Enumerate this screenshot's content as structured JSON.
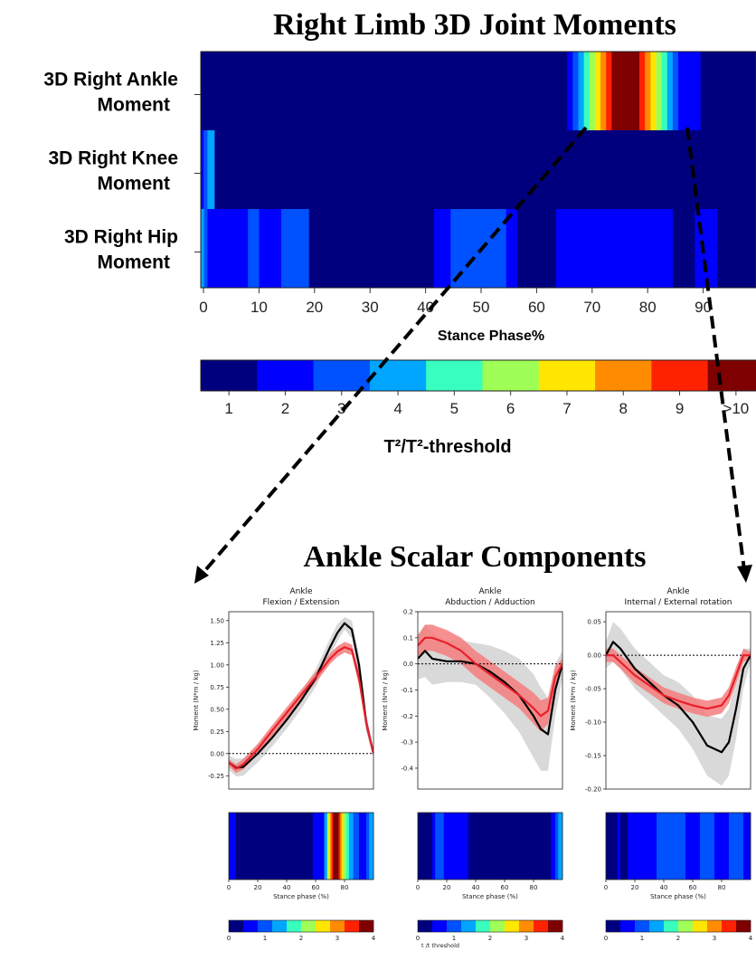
{
  "header": {
    "main_title": "Right Limb 3D Joint Moments",
    "components_title": "Ankle Scalar Components"
  },
  "colors": {
    "jet": [
      "#00007f",
      "#0000ff",
      "#0051ff",
      "#00a5ff",
      "#38ffbe",
      "#a0ff56",
      "#ffe600",
      "#ff8b00",
      "#ff2200",
      "#7f0000"
    ],
    "red_mean": "#e8202a",
    "red_band": "#f47c7c",
    "black_mean": "#000000",
    "gray_band": "#d9d9d9"
  },
  "chart_data": [
    {
      "type": "heatmap",
      "title": "Right Limb 3D Joint Moments",
      "xlabel": "Stance Phase%",
      "xlim": [
        0,
        100
      ],
      "x_ticks": [
        0,
        10,
        20,
        30,
        40,
        50,
        60,
        70,
        80,
        90
      ],
      "x_tick_labels": [
        "0",
        "10",
        "20",
        "30",
        "40",
        "50",
        "60",
        "70",
        "80",
        "90"
      ],
      "rows": [
        {
          "label": [
            "3D Right Ankle",
            "Moment"
          ],
          "segments": [
            [
              0,
              66,
              1
            ],
            [
              66,
              67,
              2
            ],
            [
              67,
              68,
              3
            ],
            [
              68,
              69,
              4
            ],
            [
              69,
              70,
              5
            ],
            [
              70,
              71,
              6
            ],
            [
              71,
              72,
              7
            ],
            [
              72,
              73,
              8
            ],
            [
              73,
              74,
              9
            ],
            [
              74,
              79,
              10
            ],
            [
              79,
              80,
              9
            ],
            [
              80,
              81,
              8
            ],
            [
              81,
              82,
              7
            ],
            [
              82,
              83,
              6
            ],
            [
              83,
              84,
              5
            ],
            [
              84,
              85,
              4
            ],
            [
              85,
              86,
              3
            ],
            [
              86,
              90,
              2
            ],
            [
              90,
              100,
              1
            ]
          ]
        },
        {
          "label": [
            "3D Right Knee",
            "Moment"
          ],
          "segments": [
            [
              0,
              0.5,
              2
            ],
            [
              0.5,
              1.2,
              3
            ],
            [
              1.2,
              2.5,
              4
            ],
            [
              2.5,
              100,
              1
            ]
          ]
        },
        {
          "label": [
            "3D Right Hip",
            "Moment"
          ],
          "segments": [
            [
              0,
              0.6,
              4
            ],
            [
              0.6,
              1.2,
              3
            ],
            [
              1.2,
              8.5,
              2
            ],
            [
              8.5,
              10.5,
              3
            ],
            [
              10.5,
              14.5,
              2
            ],
            [
              14.5,
              19.5,
              3
            ],
            [
              19.5,
              42,
              1
            ],
            [
              42,
              45,
              2
            ],
            [
              45,
              55,
              3
            ],
            [
              55,
              57,
              2
            ],
            [
              57,
              64,
              1
            ],
            [
              64,
              85,
              2
            ],
            [
              85,
              89,
              1
            ],
            [
              89,
              93,
              2
            ],
            [
              93,
              100,
              1
            ]
          ]
        }
      ]
    },
    {
      "type": "colorbar",
      "label": "T²/T²-threshold",
      "tick_labels": [
        "1",
        "2",
        "3",
        "4",
        "5",
        "6",
        "7",
        "8",
        "9",
        ">10"
      ]
    },
    {
      "type": "line",
      "title": [
        "Ankle",
        "Flexion / Extension"
      ],
      "ylabel": "Moment (N*m / kg)",
      "ylim": [
        -0.4,
        1.6
      ],
      "y_ticks": [
        -0.25,
        0,
        0.25,
        0.5,
        0.75,
        1.0,
        1.25,
        1.5
      ],
      "y_tick_labels": [
        "-0.25",
        "0.00",
        "0.25",
        "0.50",
        "0.75",
        "1.00",
        "1.25",
        "1.50"
      ],
      "x": [
        0,
        5,
        10,
        20,
        30,
        40,
        50,
        60,
        70,
        75,
        80,
        85,
        90,
        95,
        100
      ],
      "series": [
        {
          "values": [
            -0.1,
            -0.17,
            -0.12,
            0.05,
            0.26,
            0.46,
            0.66,
            0.86,
            1.07,
            1.15,
            1.2,
            1.17,
            0.85,
            0.35,
            0.0
          ],
          "band": [
            0.04,
            0.05,
            0.06,
            0.06,
            0.06,
            0.06,
            0.06,
            0.06,
            0.06,
            0.06,
            0.06,
            0.06,
            0.08,
            0.08,
            0.03
          ]
        },
        {
          "values": [
            -0.1,
            -0.16,
            -0.15,
            0.0,
            0.18,
            0.38,
            0.6,
            0.85,
            1.2,
            1.36,
            1.47,
            1.4,
            1.0,
            0.35,
            0.0
          ],
          "band": [
            0.08,
            0.1,
            0.1,
            0.1,
            0.1,
            0.1,
            0.1,
            0.1,
            0.1,
            0.1,
            0.07,
            0.1,
            0.12,
            0.1,
            0.05
          ]
        }
      ],
      "heatmap": {
        "segments": [
          [
            0,
            5,
            2
          ],
          [
            5,
            58,
            1
          ],
          [
            58,
            66,
            2
          ],
          [
            66,
            68,
            4
          ],
          [
            68,
            69,
            6
          ],
          [
            69,
            70,
            7
          ],
          [
            70,
            71,
            8
          ],
          [
            71,
            72,
            9
          ],
          [
            72,
            76,
            10
          ],
          [
            76,
            77,
            9
          ],
          [
            77,
            78,
            8
          ],
          [
            78,
            79,
            7
          ],
          [
            79,
            81,
            6
          ],
          [
            81,
            83,
            5
          ],
          [
            83,
            86,
            4
          ],
          [
            86,
            90,
            3
          ],
          [
            90,
            95,
            2
          ],
          [
            95,
            97,
            3
          ],
          [
            97,
            100,
            4
          ]
        ],
        "xlabel": "Stance phase (%)",
        "x_ticks": [
          0,
          20,
          40,
          60,
          80
        ],
        "x_tick_labels": [
          "0",
          "20",
          "40",
          "60",
          "80"
        ]
      },
      "colorbar_ticks": [
        "0",
        "1",
        "2",
        "3",
        "4"
      ],
      "colorbar_label": ""
    },
    {
      "type": "line",
      "title": [
        "Ankle",
        "Abduction / Adduction"
      ],
      "ylabel": "Moment (N*m / kg)",
      "ylim": [
        -0.48,
        0.2
      ],
      "y_ticks": [
        -0.4,
        -0.3,
        -0.2,
        -0.1,
        0.0,
        0.1,
        0.2
      ],
      "y_tick_labels": [
        "-0.4",
        "-0.3",
        "-0.2",
        "-0.1",
        "0.0",
        "0.1",
        "0.2"
      ],
      "x": [
        0,
        5,
        10,
        20,
        30,
        40,
        50,
        60,
        70,
        80,
        85,
        90,
        95,
        100
      ],
      "series": [
        {
          "values": [
            0.07,
            0.1,
            0.1,
            0.08,
            0.05,
            0.0,
            -0.04,
            -0.08,
            -0.12,
            -0.17,
            -0.2,
            -0.18,
            -0.05,
            0.0
          ],
          "band": [
            0.04,
            0.05,
            0.05,
            0.05,
            0.05,
            0.05,
            0.05,
            0.05,
            0.05,
            0.06,
            0.06,
            0.05,
            0.04,
            0.02
          ]
        },
        {
          "values": [
            0.02,
            0.05,
            0.02,
            0.01,
            0.01,
            0.0,
            -0.03,
            -0.07,
            -0.12,
            -0.2,
            -0.25,
            -0.27,
            -0.1,
            0.0
          ],
          "band": [
            0.08,
            0.1,
            0.1,
            0.08,
            0.08,
            0.08,
            0.1,
            0.12,
            0.14,
            0.16,
            0.16,
            0.14,
            0.1,
            0.05
          ]
        }
      ],
      "heatmap": {
        "segments": [
          [
            0,
            10,
            1
          ],
          [
            10,
            12,
            2
          ],
          [
            12,
            18,
            3
          ],
          [
            18,
            35,
            2
          ],
          [
            35,
            92,
            1
          ],
          [
            92,
            95,
            2
          ],
          [
            95,
            97,
            3
          ],
          [
            97,
            100,
            4
          ]
        ],
        "xlabel": "Stance phase (%)",
        "x_ticks": [
          0,
          20,
          40,
          60,
          80
        ],
        "x_tick_labels": [
          "0",
          "20",
          "40",
          "60",
          "80"
        ]
      },
      "colorbar_ticks": [
        "0",
        "1",
        "2",
        "3",
        "4"
      ],
      "colorbar_label": "t /t threshold"
    },
    {
      "type": "line",
      "title": [
        "Ankle",
        "Internal / External rotation"
      ],
      "ylabel": "Moment (N*m / kg)",
      "ylim": [
        -0.2,
        0.065
      ],
      "y_ticks": [
        -0.2,
        -0.15,
        -0.1,
        -0.05,
        0.0,
        0.05
      ],
      "y_tick_labels": [
        "-0.20",
        "-0.15",
        "-0.10",
        "-0.05",
        "0.00",
        "0.05"
      ],
      "x": [
        0,
        5,
        10,
        20,
        30,
        40,
        50,
        60,
        70,
        80,
        85,
        90,
        95,
        100
      ],
      "series": [
        {
          "values": [
            0.0,
            0.0,
            -0.01,
            -0.03,
            -0.045,
            -0.06,
            -0.068,
            -0.075,
            -0.08,
            -0.075,
            -0.06,
            -0.03,
            0.0,
            0.0
          ],
          "band": [
            0.01,
            0.01,
            0.01,
            0.012,
            0.012,
            0.012,
            0.012,
            0.012,
            0.012,
            0.012,
            0.012,
            0.012,
            0.01,
            0.005
          ]
        },
        {
          "values": [
            0.0,
            0.02,
            0.01,
            -0.02,
            -0.04,
            -0.06,
            -0.075,
            -0.1,
            -0.135,
            -0.145,
            -0.13,
            -0.08,
            -0.02,
            0.0
          ],
          "band": [
            0.02,
            0.03,
            0.03,
            0.03,
            0.03,
            0.03,
            0.035,
            0.04,
            0.045,
            0.05,
            0.05,
            0.045,
            0.03,
            0.01
          ]
        }
      ],
      "heatmap": {
        "segments": [
          [
            0,
            8,
            1
          ],
          [
            8,
            10,
            2
          ],
          [
            10,
            15,
            1
          ],
          [
            15,
            35,
            2
          ],
          [
            35,
            55,
            3
          ],
          [
            55,
            65,
            2
          ],
          [
            65,
            75,
            3
          ],
          [
            75,
            85,
            2
          ],
          [
            85,
            95,
            3
          ],
          [
            95,
            100,
            2
          ]
        ],
        "xlabel": "Stance phase (%)",
        "x_ticks": [
          0,
          20,
          40,
          60,
          80
        ],
        "x_tick_labels": [
          "0",
          "20",
          "40",
          "60",
          "80"
        ]
      },
      "colorbar_ticks": [
        "0",
        "1",
        "2",
        "3",
        "4"
      ],
      "colorbar_label": ""
    }
  ]
}
